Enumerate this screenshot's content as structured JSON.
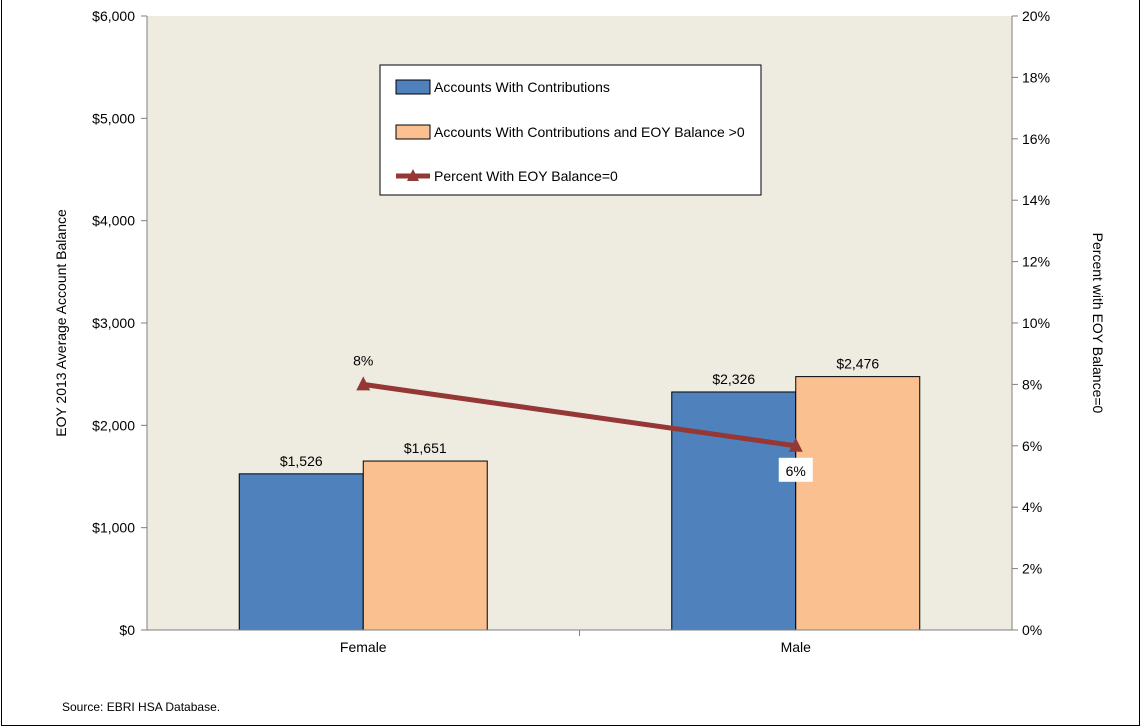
{
  "chart_data": {
    "type": "bar",
    "categories": [
      "Female",
      "Male"
    ],
    "series": [
      {
        "name": "Accounts With Contributions",
        "values": [
          1526,
          2326
        ],
        "color": "#4f81bd",
        "labels": [
          "$1,526",
          "$2,326"
        ]
      },
      {
        "name": "Accounts With Contributions and EOY Balance >0",
        "values": [
          1651,
          2476
        ],
        "color": "#fac090",
        "labels": [
          "$1,651",
          "$2,476"
        ]
      }
    ],
    "line_series": {
      "name": "Percent With EOY Balance=0",
      "values": [
        8,
        6
      ],
      "color": "#953735",
      "labels": [
        "8%",
        "6%"
      ],
      "axis": "right"
    },
    "ylabel": "EOY 2013 Average Account Balance",
    "y2label": "Percent with EOY Balance=0",
    "ylim": [
      0,
      6000
    ],
    "y2lim": [
      0,
      20
    ],
    "yticks": [
      "$0",
      "$1,000",
      "$2,000",
      "$3,000",
      "$4,000",
      "$5,000",
      "$6,000"
    ],
    "y2ticks": [
      "0%",
      "2%",
      "4%",
      "6%",
      "8%",
      "10%",
      "12%",
      "14%",
      "16%",
      "18%",
      "20%"
    ],
    "plot_background": "#eeece1",
    "legend_position": "top-center",
    "source": "Source: EBRI HSA Database."
  }
}
